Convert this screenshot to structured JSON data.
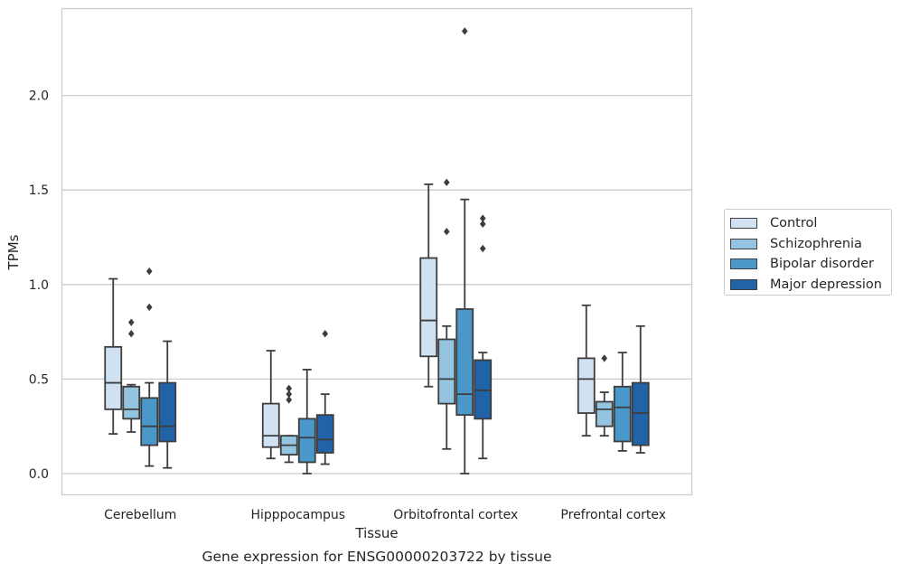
{
  "chart_data": {
    "type": "box",
    "caption": "Gene expression for ENSG00000203722 by tissue",
    "xlabel": "Tissue",
    "ylabel": "TPMs",
    "ylim": [
      -0.11,
      2.47
    ],
    "yticks": [
      0.0,
      0.5,
      1.0,
      1.5,
      2.0
    ],
    "ytick_labels": [
      "0.0",
      "0.5",
      "1.0",
      "1.5",
      "2.0"
    ],
    "grid": "horizontal",
    "legend_position": "right",
    "categories": [
      "Cerebellum",
      "Hipppocampus",
      "Orbitofrontal cortex",
      "Prefrontal cortex"
    ],
    "series": [
      {
        "name": "Control",
        "color": "#d0e1f2",
        "boxes": [
          {
            "whislo": 0.21,
            "q1": 0.34,
            "med": 0.48,
            "q3": 0.67,
            "whishi": 1.03,
            "fliers": []
          },
          {
            "whislo": 0.08,
            "q1": 0.14,
            "med": 0.2,
            "q3": 0.37,
            "whishi": 0.65,
            "fliers": []
          },
          {
            "whislo": 0.46,
            "q1": 0.62,
            "med": 0.81,
            "q3": 1.14,
            "whishi": 1.53,
            "fliers": []
          },
          {
            "whislo": 0.2,
            "q1": 0.32,
            "med": 0.5,
            "q3": 0.61,
            "whishi": 0.89,
            "fliers": []
          }
        ]
      },
      {
        "name": "Schizophrenia",
        "color": "#94c4df",
        "boxes": [
          {
            "whislo": 0.22,
            "q1": 0.29,
            "med": 0.34,
            "q3": 0.46,
            "whishi": 0.47,
            "fliers": [
              0.74,
              0.8
            ]
          },
          {
            "whislo": 0.06,
            "q1": 0.1,
            "med": 0.15,
            "q3": 0.2,
            "whishi": 0.2,
            "fliers": [
              0.39,
              0.42,
              0.45
            ]
          },
          {
            "whislo": 0.13,
            "q1": 0.37,
            "med": 0.5,
            "q3": 0.71,
            "whishi": 0.78,
            "fliers": [
              1.28,
              1.54
            ]
          },
          {
            "whislo": 0.2,
            "q1": 0.25,
            "med": 0.34,
            "q3": 0.38,
            "whishi": 0.43,
            "fliers": [
              0.61
            ]
          }
        ]
      },
      {
        "name": "Bipolar disorder",
        "color": "#4a98c9",
        "boxes": [
          {
            "whislo": 0.04,
            "q1": 0.15,
            "med": 0.25,
            "q3": 0.4,
            "whishi": 0.48,
            "fliers": [
              0.88,
              1.07
            ]
          },
          {
            "whislo": 0.0,
            "q1": 0.06,
            "med": 0.19,
            "q3": 0.29,
            "whishi": 0.55,
            "fliers": []
          },
          {
            "whislo": 0.0,
            "q1": 0.31,
            "med": 0.42,
            "q3": 0.87,
            "whishi": 1.45,
            "fliers": [
              2.34
            ]
          },
          {
            "whislo": 0.12,
            "q1": 0.17,
            "med": 0.35,
            "q3": 0.46,
            "whishi": 0.64,
            "fliers": []
          }
        ]
      },
      {
        "name": "Major depression",
        "color": "#2163a9",
        "boxes": [
          {
            "whislo": 0.03,
            "q1": 0.17,
            "med": 0.25,
            "q3": 0.48,
            "whishi": 0.7,
            "fliers": []
          },
          {
            "whislo": 0.05,
            "q1": 0.11,
            "med": 0.18,
            "q3": 0.31,
            "whishi": 0.42,
            "fliers": [
              0.74
            ]
          },
          {
            "whislo": 0.08,
            "q1": 0.29,
            "med": 0.44,
            "q3": 0.6,
            "whishi": 0.64,
            "fliers": [
              1.19,
              1.32,
              1.35
            ]
          },
          {
            "whislo": 0.11,
            "q1": 0.15,
            "med": 0.32,
            "q3": 0.48,
            "whishi": 0.78,
            "fliers": []
          }
        ]
      }
    ]
  }
}
